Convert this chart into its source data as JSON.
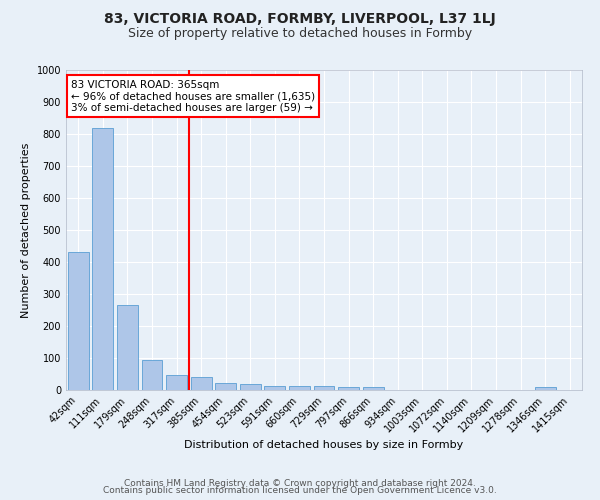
{
  "title": "83, VICTORIA ROAD, FORMBY, LIVERPOOL, L37 1LJ",
  "subtitle": "Size of property relative to detached houses in Formby",
  "xlabel": "Distribution of detached houses by size in Formby",
  "ylabel": "Number of detached properties",
  "categories": [
    "42sqm",
    "111sqm",
    "179sqm",
    "248sqm",
    "317sqm",
    "385sqm",
    "454sqm",
    "523sqm",
    "591sqm",
    "660sqm",
    "729sqm",
    "797sqm",
    "866sqm",
    "934sqm",
    "1003sqm",
    "1072sqm",
    "1140sqm",
    "1209sqm",
    "1278sqm",
    "1346sqm",
    "1415sqm"
  ],
  "values": [
    430,
    820,
    265,
    93,
    47,
    42,
    22,
    18,
    12,
    12,
    12,
    8,
    8,
    0,
    0,
    0,
    0,
    0,
    0,
    10,
    0
  ],
  "bar_color": "#aec6e8",
  "bar_edge_color": "#5a9fd4",
  "vline_x_index": 4.5,
  "vline_color": "red",
  "annotation_text": "83 VICTORIA ROAD: 365sqm\n← 96% of detached houses are smaller (1,635)\n3% of semi-detached houses are larger (59) →",
  "annotation_box_color": "white",
  "annotation_box_edge": "red",
  "ylim": [
    0,
    1000
  ],
  "yticks": [
    0,
    100,
    200,
    300,
    400,
    500,
    600,
    700,
    800,
    900,
    1000
  ],
  "footer1": "Contains HM Land Registry data © Crown copyright and database right 2024.",
  "footer2": "Contains public sector information licensed under the Open Government Licence v3.0.",
  "background_color": "#e8f0f8",
  "plot_bg_color": "#e8f0f8",
  "grid_color": "#ffffff",
  "title_fontsize": 10,
  "subtitle_fontsize": 9,
  "axis_label_fontsize": 8,
  "tick_fontsize": 7,
  "annotation_fontsize": 7.5,
  "footer_fontsize": 6.5
}
